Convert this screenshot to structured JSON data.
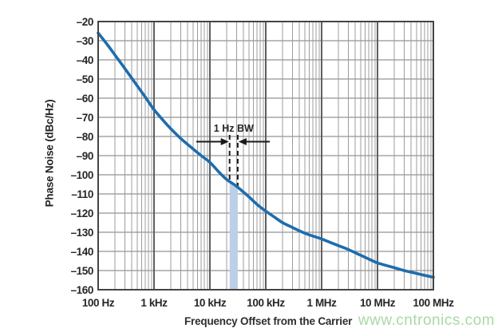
{
  "chart_data": {
    "type": "line",
    "title": "",
    "xlabel": "Frequency Offset from the Carrier",
    "ylabel": "Phase Noise (dBc/Hz)",
    "x_scale": "log",
    "xlim": [
      100,
      100000000
    ],
    "ylim": [
      -160,
      -20
    ],
    "grid": "x: log decades with minor lines, y: major every 10 dB",
    "x_tick_values": [
      100,
      1000,
      10000,
      100000,
      1000000,
      10000000,
      100000000
    ],
    "x_tick_labels": [
      "100 Hz",
      "1 kHz",
      "10 kHz",
      "100 kHz",
      "1 MHz",
      "10 MHz",
      "100 MHz"
    ],
    "y_tick_values": [
      -20,
      -30,
      -40,
      -50,
      -60,
      -70,
      -80,
      -90,
      -100,
      -110,
      -120,
      -130,
      -140,
      -150,
      -160
    ],
    "y_tick_labels": [
      "–20",
      "–30",
      "–40",
      "–50",
      "–60",
      "–70",
      "–80",
      "–90",
      "–100",
      "–110",
      "–120",
      "–130",
      "–140",
      "–150",
      "–160"
    ],
    "series": [
      {
        "name": "phase-noise-curve",
        "color": "#1E6DAD",
        "points": [
          [
            100,
            -26
          ],
          [
            150,
            -32.5
          ],
          [
            200,
            -37.5
          ],
          [
            300,
            -44.5
          ],
          [
            500,
            -53.5
          ],
          [
            700,
            -59.5
          ],
          [
            1000,
            -66
          ],
          [
            1500,
            -72
          ],
          [
            2000,
            -76
          ],
          [
            3000,
            -81
          ],
          [
            5000,
            -86.5
          ],
          [
            7000,
            -90
          ],
          [
            10000,
            -93.5
          ],
          [
            15000,
            -99
          ],
          [
            20000,
            -102.5
          ],
          [
            30000,
            -106
          ],
          [
            50000,
            -111.5
          ],
          [
            70000,
            -115.5
          ],
          [
            100000,
            -119
          ],
          [
            150000,
            -122.5
          ],
          [
            200000,
            -125
          ],
          [
            300000,
            -127.5
          ],
          [
            500000,
            -130.5
          ],
          [
            700000,
            -132
          ],
          [
            1000000,
            -133.5
          ],
          [
            2000000,
            -137
          ],
          [
            3000000,
            -139
          ],
          [
            5000000,
            -142
          ],
          [
            7000000,
            -144
          ],
          [
            10000000,
            -146
          ],
          [
            20000000,
            -148.5
          ],
          [
            30000000,
            -150
          ],
          [
            50000000,
            -151.5
          ],
          [
            70000000,
            -152.5
          ],
          [
            100000000,
            -153.5
          ]
        ]
      }
    ],
    "annotation": {
      "label": "1 Hz BW",
      "band_start_hz": 22500,
      "band_end_hz": 31500,
      "band_fill": "#BCCFE8",
      "marker_color": "#1A1A1A"
    }
  },
  "colors": {
    "frame": "#444444",
    "grid_major_x": "#5F5F5F",
    "grid_minor_x": "#9C9C9C",
    "grid_y": "#787878",
    "tick_text": "#262626",
    "curve": "#1E6DAD",
    "band": "#BCCFE8"
  },
  "watermark": {
    "text": "www.cntronics.com",
    "color": "#A9DAA5"
  }
}
